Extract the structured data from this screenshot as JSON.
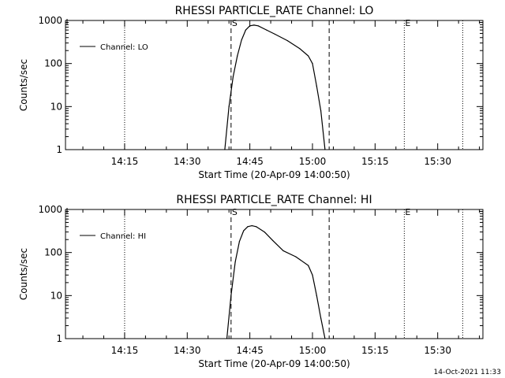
{
  "footer": {
    "timestamp": "14-Oct-2021 11:33"
  },
  "chart_data": [
    {
      "type": "line",
      "title": "RHESSI PARTICLE_RATE Channel: LO",
      "xlabel": "Start Time (20-Apr-09 14:00:50)",
      "ylabel": "Counts/sec",
      "yscale": "log",
      "xlim": [
        "14:00:50",
        "15:40:50"
      ],
      "ylim": [
        1,
        1000
      ],
      "x_ticks": [
        "14:15",
        "14:30",
        "14:45",
        "15:00",
        "15:15",
        "15:30"
      ],
      "y_ticks": [
        "1",
        "10",
        "100",
        "1000"
      ],
      "legend": {
        "position": "top-left",
        "entries": [
          "Channel: LO"
        ]
      },
      "grid": false,
      "series": [
        {
          "name": "Channel: LO",
          "x": [
            "14:39:00",
            "14:40:00",
            "14:41:00",
            "14:42:00",
            "14:43:00",
            "14:44:00",
            "14:45:00",
            "14:46:00",
            "14:47:00",
            "14:49:00",
            "14:51:00",
            "14:54:00",
            "14:57:00",
            "14:59:00",
            "15:00:00",
            "15:01:00",
            "15:02:00",
            "15:03:00"
          ],
          "y": [
            1,
            10,
            50,
            150,
            350,
            600,
            750,
            780,
            750,
            600,
            480,
            340,
            220,
            150,
            100,
            30,
            8,
            1
          ]
        }
      ],
      "annotations": {
        "dashed_lines": [
          "14:40:30",
          "15:04:00"
        ],
        "dotted_lines": [
          "14:15:00",
          "15:22:00",
          "15:36:00"
        ],
        "markers": [
          {
            "label": "S",
            "x": "14:40:30"
          },
          {
            "label": "E",
            "x": "15:22:00"
          }
        ]
      }
    },
    {
      "type": "line",
      "title": "RHESSI PARTICLE_RATE Channel: HI",
      "xlabel": "Start Time (20-Apr-09 14:00:50)",
      "ylabel": "Counts/sec",
      "yscale": "log",
      "xlim": [
        "14:00:50",
        "15:40:50"
      ],
      "ylim": [
        1,
        1000
      ],
      "x_ticks": [
        "14:15",
        "14:30",
        "14:45",
        "15:00",
        "15:15",
        "15:30"
      ],
      "y_ticks": [
        "1",
        "10",
        "100",
        "1000"
      ],
      "legend": {
        "position": "top-left",
        "entries": [
          "Channel: HI"
        ]
      },
      "grid": false,
      "series": [
        {
          "name": "Channel: HI",
          "x": [
            "14:39:30",
            "14:40:30",
            "14:41:30",
            "14:42:30",
            "14:43:30",
            "14:44:30",
            "14:45:30",
            "14:46:30",
            "14:48:30",
            "14:50:30",
            "14:53:00",
            "14:56:00",
            "14:59:00",
            "15:00:00",
            "15:01:00",
            "15:02:00",
            "15:03:00"
          ],
          "y": [
            1,
            10,
            60,
            180,
            320,
            400,
            420,
            400,
            300,
            190,
            110,
            80,
            50,
            30,
            10,
            3,
            1
          ]
        }
      ],
      "annotations": {
        "dashed_lines": [
          "14:40:30",
          "15:04:00"
        ],
        "dotted_lines": [
          "14:15:00",
          "15:22:00",
          "15:36:00"
        ],
        "markers": [
          {
            "label": "S",
            "x": "14:40:30"
          },
          {
            "label": "E",
            "x": "15:22:00"
          }
        ]
      }
    }
  ]
}
